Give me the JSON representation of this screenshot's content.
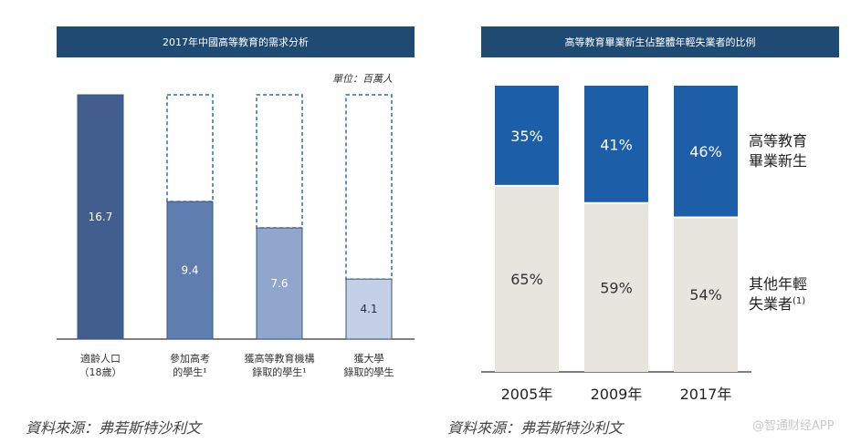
{
  "chart_data": [
    {
      "type": "bar",
      "title": "2017年中國高等教育的需求分析",
      "unit": "單位：百萬人",
      "categories": [
        "適齡人口\n（18歲）",
        "參加高考\n的學生¹",
        "獲高等教育機構\n錄取的學生¹",
        "獲大學\n錄取的學生"
      ],
      "values": [
        16.7,
        9.4,
        7.6,
        4.1
      ],
      "value_labels": [
        "16.7",
        "9.4",
        "7.6",
        "4.1"
      ],
      "reference_total": 16.7,
      "ylim": [
        0,
        16.7
      ],
      "colors": [
        "#415e8f",
        "#5f7daf",
        "#91a6cc",
        "#c4d0e5"
      ],
      "dashed_outline_color": "#2d6fb8"
    },
    {
      "type": "bar",
      "stacked": true,
      "title": "高等教育畢業新生佔整體年輕失業者的比例",
      "categories": [
        "2005年",
        "2009年",
        "2017年"
      ],
      "series": [
        {
          "name": "高等教育\n畢業新生",
          "values": [
            35,
            41,
            46
          ],
          "labels": [
            "35%",
            "41%",
            "46%"
          ],
          "color": "#1c5fa8"
        },
        {
          "name": "其他年輕\n失業者(1)",
          "values": [
            65,
            59,
            54
          ],
          "labels": [
            "65%",
            "59%",
            "54%"
          ],
          "color": "#e8e5df"
        }
      ],
      "ylim": [
        0,
        100
      ]
    }
  ],
  "sources": {
    "left": "資料來源：弗若斯特沙利文",
    "right": "資料來源：弗若斯特沙利文"
  },
  "watermark": "@智通财经APP"
}
